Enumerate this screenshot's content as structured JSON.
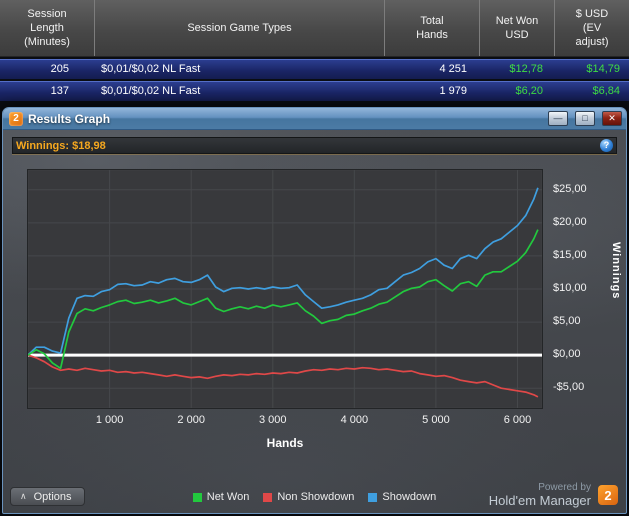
{
  "table": {
    "columns": {
      "session_length": "Session\nLength\n(Minutes)",
      "game_types": "Session Game Types",
      "total_hands": "Total\nHands",
      "net_won": "Net Won\nUSD",
      "ev_adjust": "$ USD\n(EV\nadjust)"
    },
    "rows": [
      {
        "minutes": "205",
        "game": "$0,01/$0,02 NL Fast",
        "hands": "4 251",
        "net_won": "$12,78",
        "ev_adjust": "$14,79"
      },
      {
        "minutes": "137",
        "game": "$0,01/$0,02 NL Fast",
        "hands": "1 979",
        "net_won": "$6,20",
        "ev_adjust": "$6,84"
      }
    ]
  },
  "window": {
    "title": "Results Graph",
    "logo_text": "2",
    "controls": {
      "minimize": "—",
      "maximize": "□",
      "close": "✕"
    }
  },
  "winnings": {
    "label": "Winnings: $18,98",
    "info_glyph": "?"
  },
  "footer": {
    "options_label": "Options",
    "options_chevron": "∧",
    "powered_by": "Powered by",
    "brand": "Hold'em Manager",
    "logo_text": "2"
  },
  "colors": {
    "money_green": "#3fdc44",
    "winnings_orange": "#f6a81f",
    "brand_orange": "#f58220",
    "net_won": "#22c93e",
    "non_showdown": "#e04848",
    "showdown": "#3f9fe0"
  },
  "chart_data": {
    "type": "line",
    "title": "",
    "xlabel": "Hands",
    "ylabel": "Winnings",
    "xlim": [
      0,
      6300
    ],
    "ylim": [
      -8,
      28
    ],
    "grid": true,
    "grid_color": "#46484b",
    "zero_line_color": "#ffffff",
    "legend_position": "bottom",
    "x_ticks": [
      {
        "value": 1000,
        "label": "1 000"
      },
      {
        "value": 2000,
        "label": "2 000"
      },
      {
        "value": 3000,
        "label": "3 000"
      },
      {
        "value": 4000,
        "label": "4 000"
      },
      {
        "value": 5000,
        "label": "5 000"
      },
      {
        "value": 6000,
        "label": "6 000"
      }
    ],
    "y_ticks": [
      {
        "value": 25,
        "label": "$25,00"
      },
      {
        "value": 20,
        "label": "$20,00"
      },
      {
        "value": 15,
        "label": "$15,00"
      },
      {
        "value": 10,
        "label": "$10,00"
      },
      {
        "value": 5,
        "label": "$5,00"
      },
      {
        "value": 0,
        "label": "$0,00"
      },
      {
        "value": -5,
        "label": "-$5,00"
      }
    ],
    "x": [
      0,
      100,
      200,
      300,
      400,
      500,
      600,
      700,
      800,
      900,
      1000,
      1100,
      1200,
      1300,
      1400,
      1500,
      1600,
      1700,
      1800,
      1900,
      2000,
      2100,
      2200,
      2300,
      2400,
      2500,
      2600,
      2700,
      2800,
      2900,
      3000,
      3100,
      3200,
      3300,
      3400,
      3500,
      3600,
      3700,
      3800,
      3900,
      4000,
      4100,
      4200,
      4300,
      4400,
      4500,
      4600,
      4700,
      4800,
      4900,
      5000,
      5100,
      5200,
      5300,
      5400,
      5500,
      5600,
      5700,
      5800,
      5900,
      6000,
      6100,
      6200,
      6250
    ],
    "series": [
      {
        "name": "Net Won",
        "color": "#22c93e",
        "y": [
          0,
          0.8,
          0.2,
          -1.2,
          -2.0,
          3.5,
          6.3,
          7.0,
          6.7,
          7.2,
          7.6,
          8.1,
          8.3,
          7.8,
          8.0,
          8.3,
          7.9,
          8.2,
          8.6,
          7.9,
          7.6,
          8.1,
          8.6,
          7.1,
          6.6,
          7.0,
          7.3,
          7.0,
          7.4,
          7.1,
          7.6,
          7.3,
          7.6,
          7.9,
          6.7,
          5.9,
          4.8,
          5.2,
          5.4,
          6.0,
          6.2,
          6.7,
          7.1,
          7.7,
          8.0,
          8.8,
          9.6,
          10.1,
          10.3,
          11.1,
          11.4,
          10.5,
          9.7,
          10.8,
          11.1,
          10.4,
          12.1,
          12.6,
          12.6,
          13.4,
          14.2,
          15.5,
          17.6,
          18.98
        ]
      },
      {
        "name": "Non Showdown",
        "color": "#e04848",
        "y": [
          0,
          -0.4,
          -1.0,
          -1.8,
          -2.3,
          -2.1,
          -2.3,
          -2.0,
          -2.2,
          -2.4,
          -2.3,
          -2.6,
          -2.5,
          -2.7,
          -2.6,
          -2.8,
          -3.0,
          -3.2,
          -3.0,
          -3.2,
          -3.4,
          -3.3,
          -3.5,
          -3.2,
          -3.0,
          -3.1,
          -2.9,
          -3.0,
          -2.8,
          -2.9,
          -2.7,
          -2.8,
          -2.6,
          -2.7,
          -2.4,
          -2.2,
          -2.3,
          -2.1,
          -2.2,
          -2.0,
          -2.1,
          -1.9,
          -2.0,
          -2.2,
          -2.1,
          -2.3,
          -2.5,
          -2.4,
          -2.8,
          -3.0,
          -3.2,
          -3.1,
          -3.4,
          -3.8,
          -4.0,
          -4.2,
          -4.0,
          -4.5,
          -5.0,
          -5.2,
          -5.4,
          -5.6,
          -6.0,
          -6.32
        ]
      },
      {
        "name": "Showdown",
        "color": "#3f9fe0",
        "y": [
          0,
          1.2,
          1.2,
          0.6,
          0.3,
          5.6,
          8.6,
          9.0,
          8.9,
          9.6,
          9.9,
          10.7,
          10.8,
          10.5,
          10.6,
          11.1,
          10.9,
          11.4,
          11.6,
          11.1,
          11.0,
          11.4,
          12.1,
          10.3,
          9.6,
          10.1,
          10.2,
          10.0,
          10.2,
          10.0,
          10.3,
          10.1,
          10.2,
          10.6,
          9.1,
          8.1,
          7.1,
          7.3,
          7.6,
          8.0,
          8.3,
          8.6,
          9.1,
          9.9,
          10.1,
          11.1,
          12.1,
          12.5,
          13.1,
          14.1,
          14.6,
          13.6,
          13.1,
          14.6,
          15.1,
          14.6,
          16.1,
          17.1,
          17.6,
          18.6,
          19.6,
          21.1,
          23.6,
          25.3
        ]
      }
    ]
  }
}
